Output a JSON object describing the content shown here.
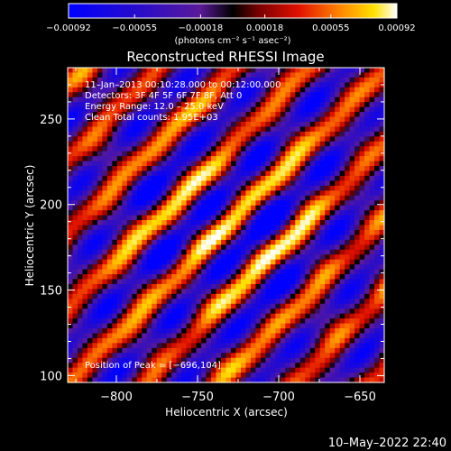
{
  "chart_data": {
    "type": "heatmap",
    "title": "Reconstructed RHESSI Image",
    "xlabel": "Heliocentric X (arcsec)",
    "ylabel": "Heliocentric Y (arcsec)",
    "xlim": [
      -830,
      -635
    ],
    "ylim": [
      96,
      280
    ],
    "x_ticks": [
      {
        "value": -800,
        "label": "−800"
      },
      {
        "value": -750,
        "label": "−750"
      },
      {
        "value": -700,
        "label": "−700"
      },
      {
        "value": -650,
        "label": "−650"
      }
    ],
    "y_ticks": [
      {
        "value": 100,
        "label": "100"
      },
      {
        "value": 150,
        "label": "150"
      },
      {
        "value": 200,
        "label": "200"
      },
      {
        "value": 250,
        "label": "250"
      }
    ],
    "colorbar": {
      "min": -0.00092,
      "max": 0.00092,
      "ticks": [
        {
          "value": -0.00092,
          "label": "−0.00092"
        },
        {
          "value": -0.00055,
          "label": "−0.00055"
        },
        {
          "value": -0.00018,
          "label": "−0.00018"
        },
        {
          "value": 0.00018,
          "label": "0.00018"
        },
        {
          "value": 0.00055,
          "label": "0.00055"
        },
        {
          "value": 0.00092,
          "label": "0.00092"
        }
      ],
      "unit": "(photons cm⁻² s⁻¹ asec⁻²)"
    },
    "info_lines": [
      "11–Jan–2013 00:10:28.000 to 00:12:00.000",
      "Detectors: 3F 4F 5F 6F 7F 8F, Att 0",
      "Energy Range: 12.0 – 25.0 keV",
      "Clean     Total counts: 1.95E+03"
    ],
    "peak_label": "Position of Peak = [−696,104]",
    "peak_position": [
      -696,
      104
    ],
    "footer_timestamp": "10–May–2022 22:40"
  }
}
